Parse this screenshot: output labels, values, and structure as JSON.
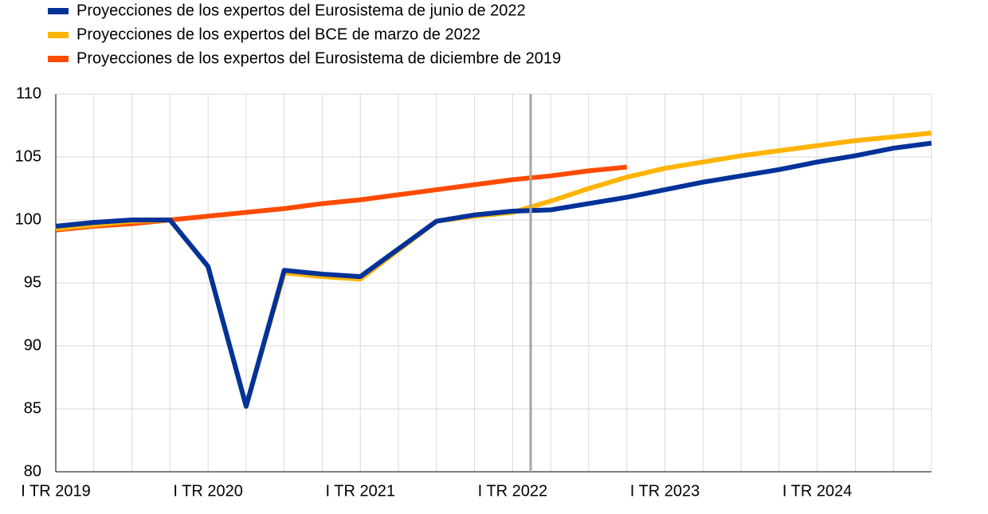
{
  "chart_data": {
    "type": "line",
    "categories": [
      "I TR 2019",
      null,
      null,
      null,
      "I TR 2020",
      null,
      null,
      null,
      "I TR 2021",
      null,
      null,
      null,
      "I TR 2022",
      null,
      null,
      null,
      "I TR 2023",
      null,
      null,
      null,
      "I TR 2024",
      null,
      null,
      null
    ],
    "series": [
      {
        "name": "Proyecciones de los expertos del Eurosistema de junio de 2022",
        "color": "#003299",
        "values": [
          99.5,
          99.8,
          100.0,
          100.0,
          96.3,
          85.2,
          96.0,
          95.7,
          95.5,
          97.7,
          99.9,
          100.4,
          100.7,
          100.8,
          101.3,
          101.8,
          102.4,
          103.0,
          103.5,
          104.0,
          104.6,
          105.1,
          105.7,
          106.1
        ]
      },
      {
        "name": "Proyecciones de los expertos del BCE de marzo de 2022",
        "color": "#ffb400",
        "values": [
          99.3,
          99.6,
          99.9,
          100.0,
          96.3,
          85.2,
          95.8,
          95.5,
          95.3,
          97.6,
          99.9,
          100.3,
          100.6,
          101.5,
          102.5,
          103.4,
          104.1,
          104.6,
          105.1,
          105.5,
          105.9,
          106.3,
          106.6,
          106.9
        ]
      },
      {
        "name": "Proyecciones de los expertos del Eurosistema de diciembre de 2019",
        "color": "#ff4b00",
        "values": [
          99.2,
          99.5,
          99.7,
          100.0,
          100.3,
          100.6,
          100.9,
          101.3,
          101.6,
          102.0,
          102.4,
          102.8,
          103.2,
          103.5,
          103.9,
          104.2,
          null,
          null,
          null,
          null,
          null,
          null,
          null,
          null
        ]
      }
    ],
    "ylim": [
      80,
      110
    ],
    "yticks": [
      80,
      85,
      90,
      95,
      100,
      105,
      110
    ],
    "grid": true
  }
}
